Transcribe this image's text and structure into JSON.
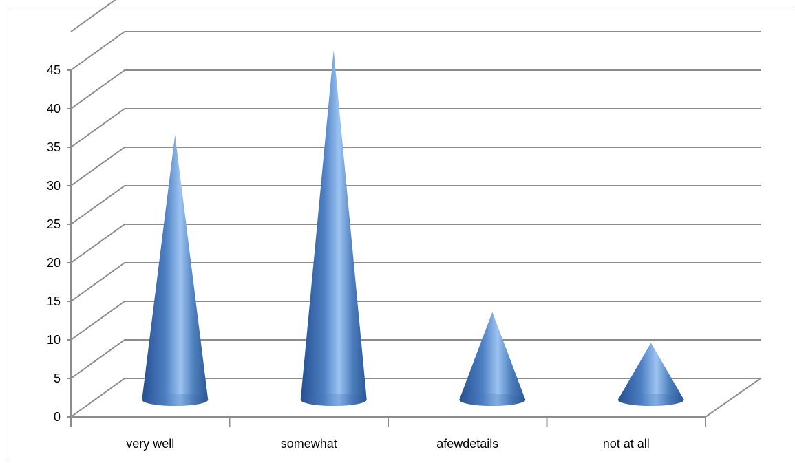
{
  "chart_data": {
    "type": "bar",
    "style": "3d-cone",
    "categories": [
      "very well",
      "somewhat",
      "afewdetails",
      "not at all"
    ],
    "values": [
      35,
      46,
      12,
      8
    ],
    "title": "",
    "xlabel": "",
    "ylabel": "",
    "ylim": [
      0,
      45
    ],
    "yticks": [
      0,
      5,
      10,
      15,
      20,
      25,
      30,
      35,
      40,
      45
    ],
    "grid": true,
    "legend": "none"
  },
  "colors": {
    "cone_dark": "#2e5da6",
    "cone_mid": "#4f81bd",
    "cone_light": "#9cc3f2",
    "grid": "#8c8c8c",
    "axis": "#8c8c8c"
  }
}
